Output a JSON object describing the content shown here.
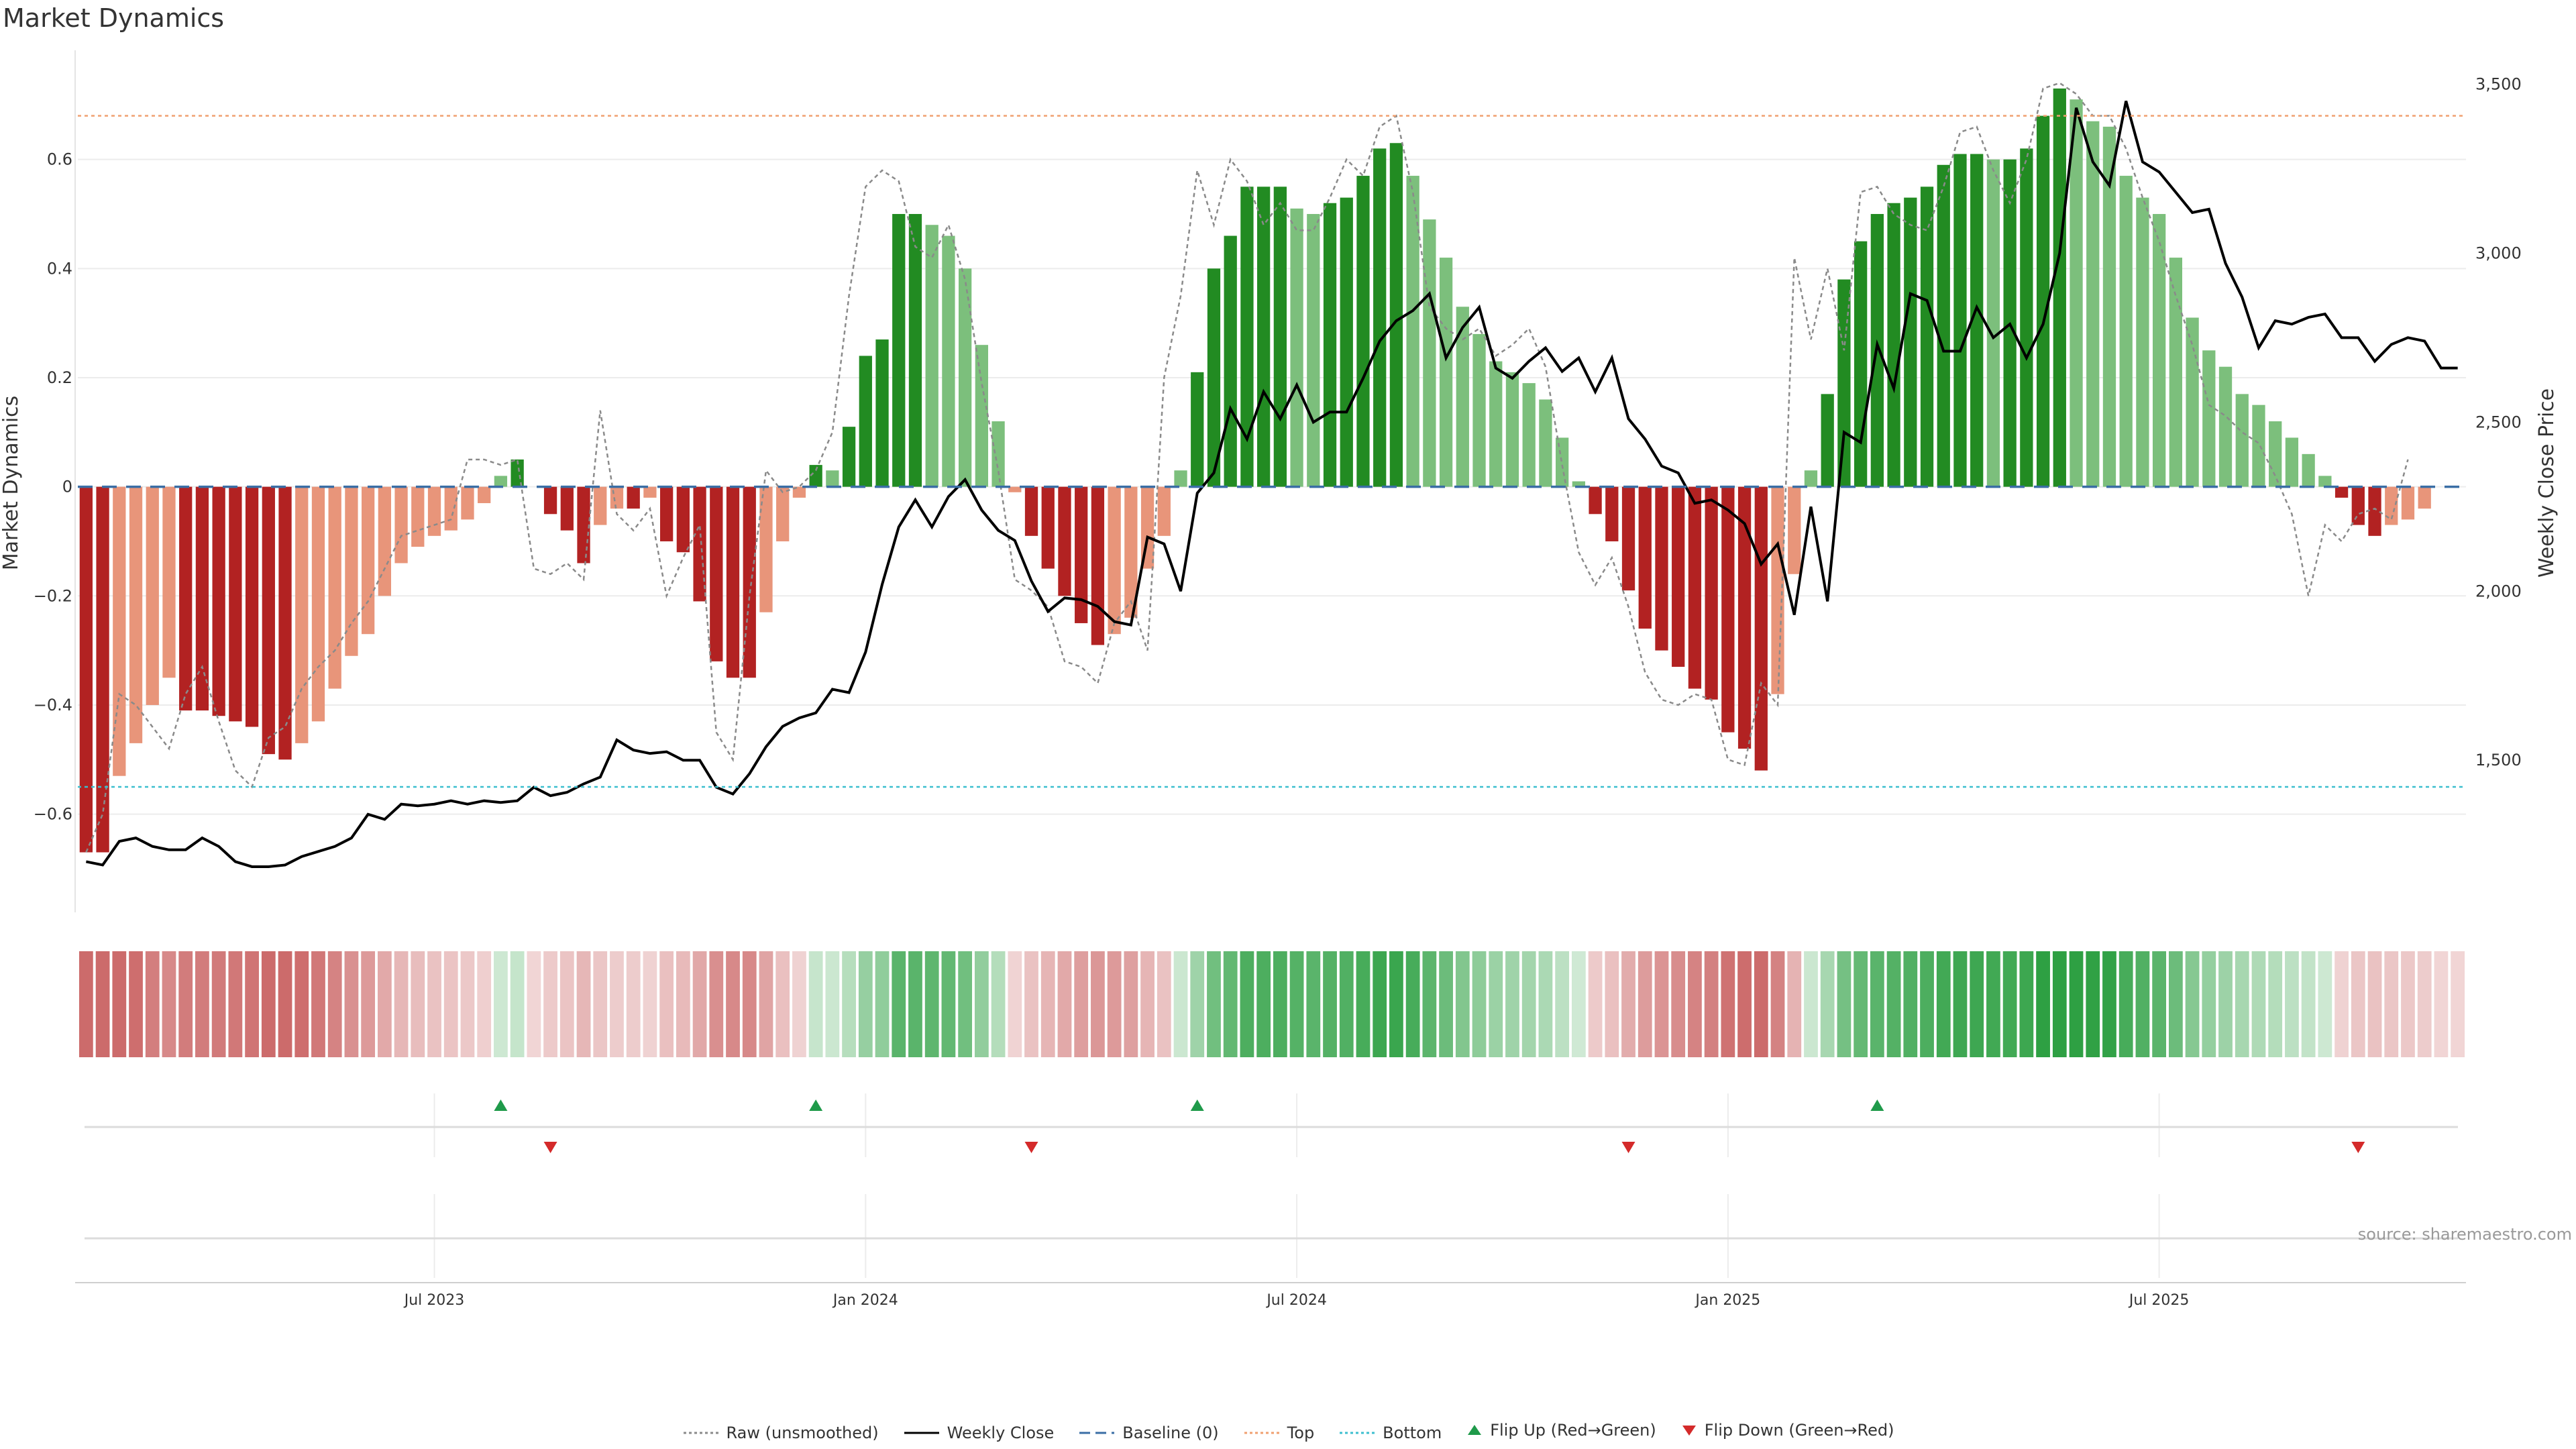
{
  "chart_data": {
    "type": "bar",
    "title": "Market Dynamics",
    "ylabel_left": "Market Dynamics",
    "ylabel_right": "Weekly Close Price",
    "ylim_left": [
      -0.78,
      0.8
    ],
    "ylim_right": [
      1050,
      3600
    ],
    "left_ticks": [
      0.6,
      0.4,
      0.2,
      0,
      -0.2,
      -0.4,
      -0.6
    ],
    "left_tick_labels": [
      "0.6",
      "0.4",
      "0.2",
      "0",
      "−0.2",
      "−0.4",
      "−0.6"
    ],
    "right_ticks": [
      3500,
      3000,
      2500,
      2000,
      1500
    ],
    "right_tick_labels": [
      "3,500",
      "3,000",
      "2,500",
      "2,000",
      "1,500"
    ],
    "x_ticks": [
      "Jul 2023",
      "Jan 2024",
      "Jul 2024",
      "Jan 2025",
      "Jul 2025"
    ],
    "x_tick_index": [
      21,
      47,
      73,
      99,
      125
    ],
    "top_level": 0.68,
    "bottom_level": -0.55,
    "baseline": 0,
    "weeks": 144,
    "bars": [
      -0.67,
      -0.67,
      -0.53,
      -0.47,
      -0.4,
      -0.35,
      -0.41,
      -0.41,
      -0.42,
      -0.43,
      -0.44,
      -0.49,
      -0.5,
      -0.47,
      -0.43,
      -0.37,
      -0.31,
      -0.27,
      -0.2,
      -0.14,
      -0.11,
      -0.09,
      -0.08,
      -0.06,
      -0.03,
      0.02,
      0.05,
      0,
      -0.05,
      -0.08,
      -0.14,
      -0.07,
      -0.04,
      -0.04,
      -0.02,
      -0.1,
      -0.12,
      -0.21,
      -0.32,
      -0.35,
      -0.35,
      -0.23,
      -0.1,
      -0.02,
      0.04,
      0.03,
      0.11,
      0.24,
      0.27,
      0.5,
      0.5,
      0.48,
      0.46,
      0.4,
      0.26,
      0.12,
      -0.01,
      -0.09,
      -0.15,
      -0.2,
      -0.25,
      -0.29,
      -0.27,
      -0.24,
      -0.15,
      -0.09,
      0.03,
      0.21,
      0.4,
      0.46,
      0.55,
      0.55,
      0.55,
      0.51,
      0.5,
      0.52,
      0.53,
      0.57,
      0.62,
      0.63,
      0.57,
      0.49,
      0.42,
      0.33,
      0.28,
      0.23,
      0.21,
      0.19,
      0.16,
      0.09,
      0.01,
      -0.05,
      -0.1,
      -0.19,
      -0.26,
      -0.3,
      -0.33,
      -0.37,
      -0.39,
      -0.45,
      -0.48,
      -0.52,
      -0.38,
      -0.16,
      0.03,
      0.17,
      0.38,
      0.45,
      0.5,
      0.52,
      0.53,
      0.55,
      0.59,
      0.61,
      0.61,
      0.6,
      0.6,
      0.62,
      0.68,
      0.73,
      0.71,
      0.67,
      0.66,
      0.57,
      0.53,
      0.5,
      0.42,
      0.31,
      0.25,
      0.22,
      0.17,
      0.15,
      0.12,
      0.09,
      0.06,
      0.02,
      -0.02,
      -0.07,
      -0.09,
      -0.07,
      -0.06,
      -0.04,
      0,
      0
    ],
    "raw_ticks_note": "Raw (unsmoothed) series",
    "raw": [
      -0.67,
      -0.6,
      -0.38,
      -0.4,
      -0.44,
      -0.48,
      -0.38,
      -0.33,
      -0.43,
      -0.52,
      -0.55,
      -0.46,
      -0.44,
      -0.37,
      -0.33,
      -0.3,
      -0.25,
      -0.21,
      -0.15,
      -0.09,
      -0.08,
      -0.07,
      -0.06,
      0.05,
      0.05,
      0.04,
      0.05,
      -0.15,
      -0.16,
      -0.14,
      -0.17,
      0.14,
      -0.05,
      -0.08,
      -0.04,
      -0.2,
      -0.13,
      -0.07,
      -0.45,
      -0.5,
      -0.2,
      0.03,
      -0.01,
      0.0,
      0.03,
      0.1,
      0.35,
      0.55,
      0.58,
      0.56,
      0.44,
      0.42,
      0.48,
      0.38,
      0.19,
      0.03,
      -0.17,
      -0.19,
      -0.22,
      -0.32,
      -0.33,
      -0.36,
      -0.25,
      -0.21,
      -0.3,
      0.2,
      0.35,
      0.58,
      0.48,
      0.6,
      0.56,
      0.48,
      0.52,
      0.47,
      0.47,
      0.53,
      0.6,
      0.57,
      0.66,
      0.68,
      0.54,
      0.33,
      0.29,
      0.27,
      0.29,
      0.24,
      0.26,
      0.29,
      0.22,
      0.04,
      -0.12,
      -0.18,
      -0.13,
      -0.22,
      -0.34,
      -0.39,
      -0.4,
      -0.38,
      -0.39,
      -0.5,
      -0.51,
      -0.36,
      -0.4,
      0.42,
      0.27,
      0.4,
      0.25,
      0.54,
      0.55,
      0.5,
      0.48,
      0.47,
      0.55,
      0.65,
      0.66,
      0.58,
      0.52,
      0.6,
      0.73,
      0.74,
      0.72,
      0.68,
      0.68,
      0.62,
      0.53,
      0.45,
      0.35,
      0.26,
      0.15,
      0.13,
      0.1,
      0.08,
      0.02,
      -0.05,
      -0.2,
      -0.07,
      -0.1,
      -0.05,
      -0.04,
      -0.06,
      0.05
    ],
    "close": [
      1200,
      1190,
      1260,
      1270,
      1245,
      1235,
      1235,
      1270,
      1245,
      1200,
      1185,
      1185,
      1190,
      1215,
      1230,
      1245,
      1270,
      1340,
      1325,
      1370,
      1365,
      1370,
      1380,
      1370,
      1380,
      1375,
      1380,
      1420,
      1395,
      1405,
      1430,
      1450,
      1560,
      1530,
      1520,
      1525,
      1500,
      1500,
      1420,
      1400,
      1460,
      1540,
      1600,
      1625,
      1640,
      1710,
      1700,
      1820,
      2020,
      2190,
      2270,
      2190,
      2280,
      2330,
      2240,
      2180,
      2150,
      2030,
      1940,
      1980,
      1975,
      1955,
      1910,
      1900,
      2160,
      2140,
      2000,
      2290,
      2350,
      2540,
      2450,
      2590,
      2510,
      2610,
      2500,
      2530,
      2530,
      2630,
      2740,
      2800,
      2830,
      2880,
      2690,
      2780,
      2840,
      2660,
      2630,
      2680,
      2720,
      2650,
      2690,
      2590,
      2690,
      2510,
      2450,
      2370,
      2350,
      2260,
      2270,
      2240,
      2200,
      2080,
      2140,
      1930,
      2250,
      1970,
      2470,
      2440,
      2730,
      2600,
      2880,
      2860,
      2710,
      2710,
      2840,
      2750,
      2790,
      2690,
      2790,
      3000,
      3430,
      3270,
      3200,
      3450,
      3270,
      3240,
      3180,
      3120,
      3130,
      2970,
      2870,
      2720,
      2800,
      2790,
      2810,
      2820,
      2750,
      2750,
      2680,
      2730,
      2750,
      2740,
      2660,
      2660
    ],
    "regime_strip_note": "colored regime strip below main chart",
    "flip_up": [
      25,
      44,
      67,
      108
    ],
    "flip_down": [
      28,
      57,
      93,
      137
    ],
    "source": "source: sharemaestro.com",
    "legend": [
      {
        "label": "Raw (unsmoothed)",
        "style": "dotted",
        "color": "#8a8a8a"
      },
      {
        "label": "Weekly Close",
        "style": "solid",
        "color": "#000000"
      },
      {
        "label": "Baseline (0)",
        "style": "dashed",
        "color": "#3a6ea5"
      },
      {
        "label": "Top",
        "style": "dotted",
        "color": "#f0a070"
      },
      {
        "label": "Bottom",
        "style": "dotted",
        "color": "#3cbfcf"
      },
      {
        "label": "Flip Up (Red→Green)",
        "style": "triangle-up",
        "color": "#1f9a4a"
      },
      {
        "label": "Flip Down (Green→Red)",
        "style": "triangle-down",
        "color": "#d42a2a"
      }
    ],
    "colors": {
      "green_strong": "#228B22",
      "green_light": "#7cbf7c",
      "red_strong": "#b22222",
      "red_light": "#e8957a",
      "top_line": "#f0a070",
      "bottom_line": "#3cbfcf",
      "baseline": "#3a6ea5",
      "raw": "#8a8a8a",
      "close": "#000000",
      "flip_up": "#1f9a4a",
      "flip_down": "#d42a2a"
    }
  }
}
